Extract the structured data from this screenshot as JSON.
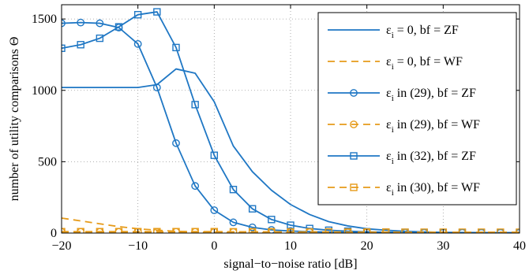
{
  "chart_data": {
    "type": "line",
    "xlabel": "signal−to−noise ratio [dB]",
    "ylabel": "number of utility comparisons Θ",
    "xlim": [
      -20,
      40
    ],
    "ylim": [
      0,
      1600
    ],
    "xticks": [
      -20,
      -10,
      0,
      10,
      20,
      30,
      40
    ],
    "xtick_labels": [
      "−20",
      "−10",
      "0",
      "10",
      "20",
      "30",
      "40"
    ],
    "yticks": [
      0,
      500,
      1000,
      1500
    ],
    "ytick_labels": [
      "0",
      "500",
      "1000",
      "1500"
    ],
    "grid": true,
    "legend_position": "top-right",
    "colors": {
      "blue": "#1f77c4",
      "orange": "#e69b1a"
    },
    "series": [
      {
        "name": "ε_i = 0, bf = ZF",
        "legend_main": "ε",
        "legend_sub": "i",
        "legend_rest": " = 0, bf = ZF",
        "color": "#1f77c4",
        "dash": "solid",
        "marker": "none",
        "x": [
          -20,
          -17.5,
          -15,
          -12.5,
          -10,
          -7.5,
          -5,
          -2.5,
          0,
          2.5,
          5,
          7.5,
          10,
          12.5,
          15,
          17.5,
          20,
          22.5,
          25,
          27.5,
          30,
          32.5,
          35,
          37.5,
          40
        ],
        "y": [
          1020,
          1020,
          1020,
          1020,
          1020,
          1040,
          1150,
          1120,
          920,
          610,
          430,
          300,
          200,
          130,
          80,
          50,
          30,
          20,
          12,
          8,
          5,
          4,
          3,
          2,
          2
        ]
      },
      {
        "name": "ε_i = 0, bf = WF",
        "legend_main": "ε",
        "legend_sub": "i",
        "legend_rest": " = 0, bf = WF",
        "color": "#e69b1a",
        "dash": "dashed",
        "marker": "none",
        "x": [
          -20,
          -17.5,
          -15,
          -12.5,
          -10,
          -7.5,
          -5,
          -2.5,
          0,
          2.5,
          5,
          7.5,
          10,
          12.5,
          15,
          17.5,
          20,
          22.5,
          25,
          27.5,
          30,
          32.5,
          35,
          37.5,
          40
        ],
        "y": [
          105,
          85,
          65,
          45,
          30,
          20,
          12,
          8,
          5,
          4,
          3,
          2,
          2,
          2,
          2,
          2,
          2,
          2,
          2,
          2,
          2,
          2,
          2,
          2,
          2
        ]
      },
      {
        "name": "ε_i in (29), bf = ZF",
        "legend_main": "ε",
        "legend_sub": "i",
        "legend_rest": " in (29), bf = ZF",
        "color": "#1f77c4",
        "dash": "solid",
        "marker": "circle",
        "x": [
          -20,
          -17.5,
          -15,
          -12.5,
          -10,
          -7.5,
          -5,
          -2.5,
          0,
          2.5,
          5,
          7.5,
          10,
          12.5,
          15,
          17.5,
          20,
          22.5,
          25,
          27.5,
          30,
          32.5,
          35,
          37.5,
          40
        ],
        "y": [
          1470,
          1475,
          1470,
          1440,
          1325,
          1020,
          630,
          330,
          160,
          75,
          40,
          22,
          14,
          10,
          7,
          5,
          4,
          3,
          3,
          2,
          2,
          2,
          2,
          2,
          2
        ]
      },
      {
        "name": "ε_i in (29), bf = WF",
        "legend_main": "ε",
        "legend_sub": "i",
        "legend_rest": " in (29), bf = WF",
        "color": "#e69b1a",
        "dash": "dashed",
        "marker": "circle",
        "x": [
          -20,
          -17.5,
          -15,
          -12.5,
          -10,
          -7.5,
          -5,
          -2.5,
          0,
          2.5,
          5,
          7.5,
          10,
          12.5,
          15,
          17.5,
          20,
          22.5,
          25,
          27.5,
          30,
          32.5,
          35,
          37.5,
          40
        ],
        "y": [
          8,
          8,
          8,
          8,
          8,
          8,
          8,
          8,
          7,
          7,
          7,
          6,
          6,
          6,
          5,
          5,
          5,
          5,
          4,
          4,
          4,
          4,
          4,
          4,
          4
        ]
      },
      {
        "name": "ε_i in (32), bf = ZF",
        "legend_main": "ε",
        "legend_sub": "i",
        "legend_rest": " in (32), bf = ZF",
        "color": "#1f77c4",
        "dash": "solid",
        "marker": "square",
        "x": [
          -20,
          -17.5,
          -15,
          -12.5,
          -10,
          -7.5,
          -5,
          -2.5,
          0,
          2.5,
          5,
          7.5,
          10,
          12.5,
          15,
          17.5,
          20,
          22.5,
          25,
          27.5,
          30,
          32.5,
          35,
          37.5,
          40
        ],
        "y": [
          1295,
          1320,
          1365,
          1445,
          1530,
          1550,
          1300,
          900,
          545,
          305,
          170,
          95,
          55,
          32,
          20,
          13,
          9,
          6,
          5,
          4,
          3,
          3,
          2,
          2,
          2
        ]
      },
      {
        "name": "ε_i in (30), bf = WF",
        "legend_main": "ε",
        "legend_sub": "i",
        "legend_rest": " in (30), bf = WF",
        "color": "#e69b1a",
        "dash": "dashed",
        "marker": "square",
        "x": [
          -20,
          -17.5,
          -15,
          -12.5,
          -10,
          -7.5,
          -5,
          -2.5,
          0,
          2.5,
          5,
          7.5,
          10,
          12.5,
          15,
          17.5,
          20,
          22.5,
          25,
          27.5,
          30,
          32.5,
          35,
          37.5,
          40
        ],
        "y": [
          10,
          10,
          10,
          10,
          10,
          10,
          10,
          10,
          10,
          9,
          9,
          9,
          8,
          8,
          8,
          7,
          7,
          7,
          6,
          6,
          6,
          6,
          6,
          6,
          6
        ]
      }
    ]
  }
}
